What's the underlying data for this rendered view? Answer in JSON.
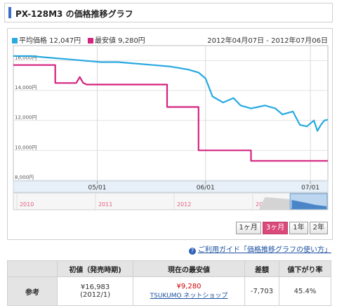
{
  "header": {
    "title": "PX-128M3 の価格推移グラフ"
  },
  "legend": {
    "avg": {
      "label": "平均価格 12,047円",
      "color": "#27a9e1"
    },
    "min": {
      "label": "最安値 9,280円",
      "color": "#d4237f"
    }
  },
  "date_range": "2012年04月07日 - 2012年07月06日",
  "chart_data": {
    "type": "line",
    "y_ticks": [
      "16,000円",
      "14,000円",
      "12,000円",
      "10,000円",
      "8,000円"
    ],
    "ylim": [
      8000,
      17000
    ],
    "x_ticks": [
      "05/01",
      "06/01",
      "07/01"
    ],
    "x_tick_days": [
      24,
      55,
      85
    ],
    "x_range_days": [
      0,
      90
    ],
    "grid": true,
    "series": [
      {
        "name": "平均価格",
        "color": "#27a9e1",
        "x": [
          0,
          5,
          10,
          15,
          20,
          25,
          30,
          35,
          40,
          45,
          50,
          53,
          55,
          57,
          60,
          63,
          65,
          68,
          70,
          72,
          75,
          77,
          80,
          82,
          84,
          86,
          87,
          88,
          89,
          90
        ],
        "y": [
          16300,
          16300,
          16200,
          16100,
          16000,
          15900,
          15900,
          15800,
          15700,
          15600,
          15400,
          15200,
          14800,
          13600,
          13200,
          13500,
          13000,
          12800,
          12900,
          13000,
          12800,
          12400,
          12600,
          11700,
          11600,
          12000,
          11300,
          11700,
          12000,
          12050
        ]
      },
      {
        "name": "最安値",
        "color": "#d4237f",
        "x": [
          0,
          12,
          12,
          18,
          19,
          20,
          21,
          44,
          44,
          53,
          53,
          68,
          68,
          90
        ],
        "y": [
          15700,
          15700,
          14500,
          14500,
          14900,
          14500,
          14400,
          14400,
          12900,
          12900,
          10000,
          10000,
          9300,
          9300
        ]
      }
    ],
    "navigator": {
      "years": [
        "2010",
        "2011",
        "2012",
        "2012"
      ],
      "year_label_color": "#e06080"
    }
  },
  "period_buttons": [
    {
      "label": "1ヶ月",
      "active": false
    },
    {
      "label": "3ヶ月",
      "active": true
    },
    {
      "label": "1年",
      "active": false
    },
    {
      "label": "2年",
      "active": false
    }
  ],
  "guide_link": "ご利用ガイド「価格推移グラフの使い方」",
  "ref_table": {
    "row_header": "参考",
    "headers": [
      "初値（発売時期)",
      "現在の最安値",
      "差額",
      "値下がり率"
    ],
    "initial_price": "¥16,983",
    "initial_date": "(2012/1)",
    "current_min": "¥9,280",
    "current_shop": "TSUKUMO ネットショップ",
    "diff": "-7,703",
    "rate": "45.4%"
  }
}
